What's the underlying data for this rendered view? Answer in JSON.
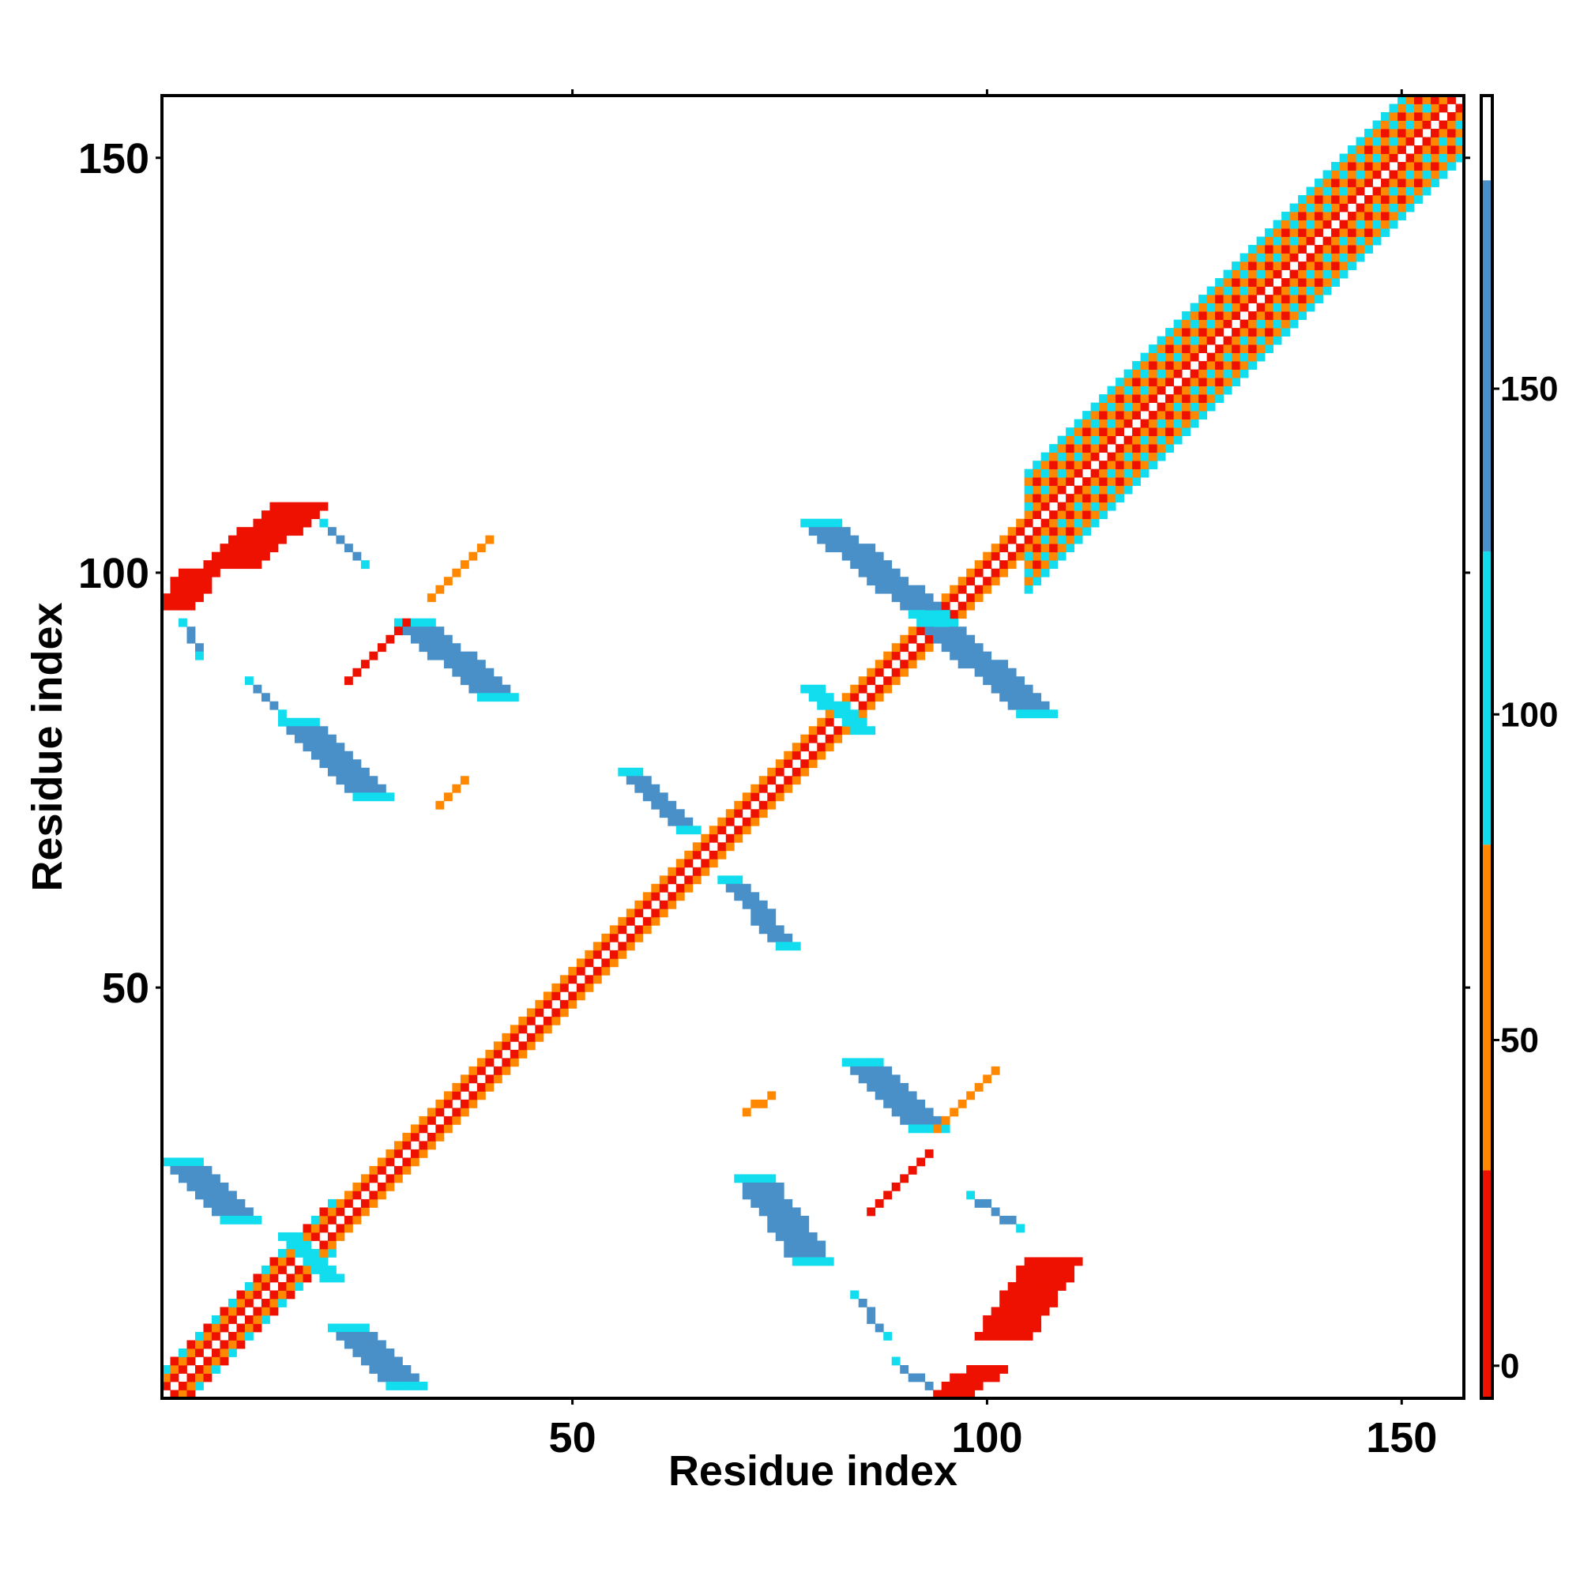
{
  "chart_data": {
    "type": "heatmap",
    "title": "",
    "xlabel": "Residue index",
    "ylabel": "Residue index",
    "xlim": [
      1,
      157
    ],
    "ylim": [
      1,
      157
    ],
    "xticks": [
      50,
      100,
      150
    ],
    "yticks": [
      50,
      100,
      150
    ],
    "grid": false,
    "diagonal_band": [
      {
        "from": 1,
        "to": 21,
        "half_width": 3
      },
      {
        "from": 21,
        "to": 105,
        "half_width": 2
      },
      {
        "from": 105,
        "to": 157,
        "half_width": 7
      }
    ],
    "off_diagonal_features": [
      {
        "start": [
          3,
          29
        ],
        "end": [
          10,
          22
        ],
        "half_width": 2,
        "value": 160
      },
      {
        "start": [
          16,
          20
        ],
        "end": [
          21,
          15
        ],
        "half_width": 1,
        "value": 120
      },
      {
        "start": [
          23,
          9
        ],
        "end": [
          30,
          2
        ],
        "half_width": 2,
        "value": 165
      },
      {
        "start": [
          72,
          27
        ],
        "end": [
          79,
          17
        ],
        "half_width": 2,
        "value": 160
      },
      {
        "start": [
          85,
          41
        ],
        "end": [
          93,
          33
        ],
        "half_width": 2,
        "value": 165
      },
      {
        "start": [
          84,
          13
        ],
        "end": [
          88,
          8
        ],
        "half_width": 0,
        "value": 160
      },
      {
        "start": [
          89,
          5
        ],
        "end": [
          94,
          1
        ],
        "half_width": 0,
        "value": 155
      },
      {
        "start": [
          102,
          8
        ],
        "end": [
          108,
          17
        ],
        "half_width": 3,
        "value": 20
      },
      {
        "start": [
          96,
          1
        ],
        "end": [
          100,
          4
        ],
        "half_width": 2,
        "value": 10
      },
      {
        "start": [
          86,
          23
        ],
        "end": [
          93,
          30
        ],
        "half_width": 0,
        "value": 25
      },
      {
        "start": [
          94,
          33
        ],
        "end": [
          101,
          40
        ],
        "half_width": 0,
        "value": 45
      },
      {
        "start": [
          71,
          35
        ],
        "end": [
          74,
          37
        ],
        "half_width": 0,
        "value": 35
      },
      {
        "start": [
          98,
          25
        ],
        "end": [
          104,
          21
        ],
        "half_width": 0,
        "value": 165
      },
      {
        "start": [
          57,
          76
        ],
        "end": [
          64,
          69
        ],
        "half_width": 1,
        "value": 160
      },
      {
        "start": [
          69,
          63
        ],
        "end": [
          76,
          55
        ],
        "half_width": 1,
        "value": 160
      },
      {
        "start": [
          80,
          106
        ],
        "end": [
          93,
          95
        ],
        "half_width": 2,
        "value": 165
      },
      {
        "start": [
          94,
          94
        ],
        "end": [
          106,
          83
        ],
        "half_width": 2,
        "value": 165
      },
      {
        "start": [
          79,
          86
        ],
        "end": [
          85,
          81
        ],
        "half_width": 1,
        "value": 110
      },
      {
        "start": [
          17,
          82
        ],
        "end": [
          26,
          73
        ],
        "half_width": 2,
        "value": 160
      },
      {
        "start": [
          31,
          94
        ],
        "end": [
          41,
          85
        ],
        "half_width": 2,
        "value": 165
      },
      {
        "start": [
          11,
          87
        ],
        "end": [
          15,
          83
        ],
        "half_width": 0,
        "value": 160
      },
      {
        "start": [
          3,
          94
        ],
        "end": [
          5,
          90
        ],
        "half_width": 0,
        "value": 150
      },
      {
        "start": [
          9,
          101
        ],
        "end": [
          17,
          108
        ],
        "half_width": 3,
        "value": 20
      },
      {
        "start": [
          2,
          96
        ],
        "end": [
          5,
          100
        ],
        "half_width": 2,
        "value": 10
      },
      {
        "start": [
          23,
          87
        ],
        "end": [
          30,
          94
        ],
        "half_width": 0,
        "value": 25
      },
      {
        "start": [
          33,
          97
        ],
        "end": [
          40,
          104
        ],
        "half_width": 0,
        "value": 45
      },
      {
        "start": [
          34,
          72
        ],
        "end": [
          37,
          75
        ],
        "half_width": 0,
        "value": 35
      },
      {
        "start": [
          20,
          106
        ],
        "end": [
          25,
          101
        ],
        "half_width": 0,
        "value": 165
      }
    ],
    "colorbar": {
      "ticks": [
        0,
        50,
        100,
        150
      ],
      "range": [
        -5,
        195
      ],
      "segments": [
        {
          "from": -5,
          "to": 30,
          "color": "#ee1100"
        },
        {
          "from": 30,
          "to": 80,
          "color": "#ff8800"
        },
        {
          "from": 80,
          "to": 125,
          "color": "#11ddee"
        },
        {
          "from": 125,
          "to": 182,
          "color": "#4a90c8"
        },
        {
          "from": 182,
          "to": 195,
          "color": "#ffffff"
        }
      ]
    }
  }
}
